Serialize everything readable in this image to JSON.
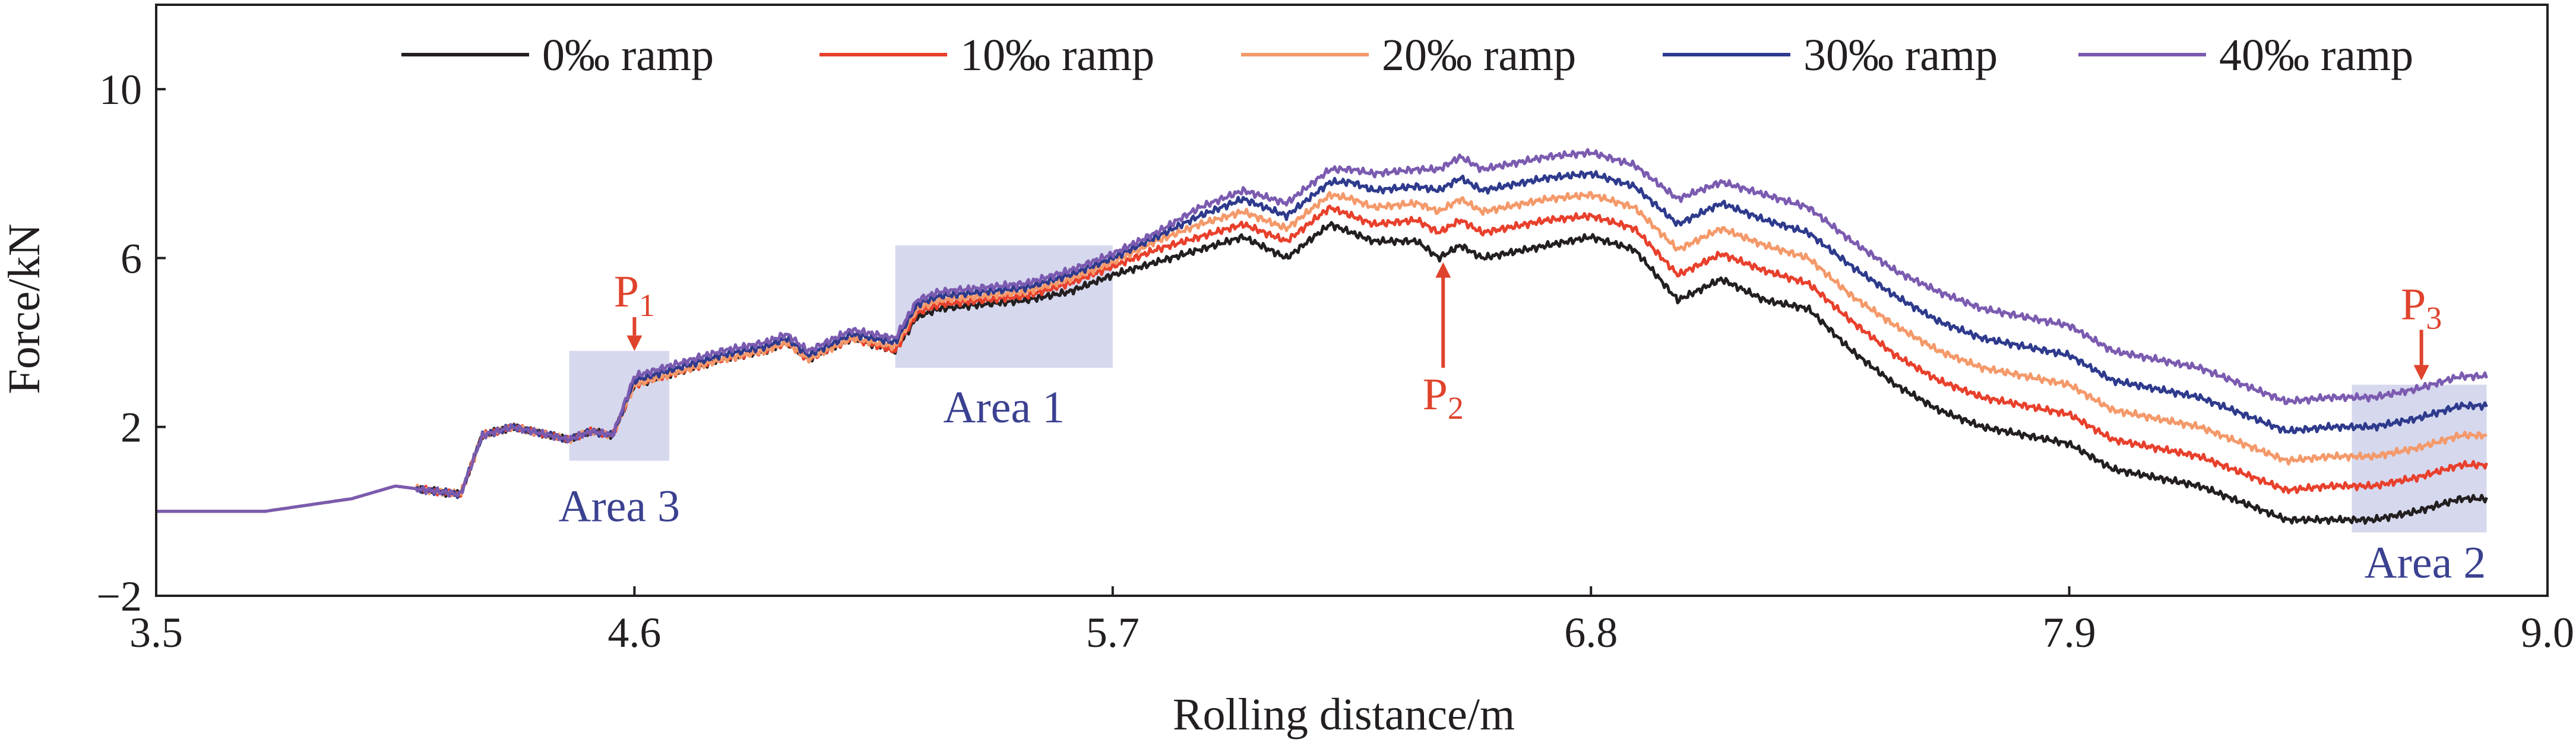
{
  "chart_data": {
    "type": "line",
    "title": "",
    "xlabel": "Rolling distance/m",
    "ylabel": "Force/kN",
    "xlim": [
      3.5,
      9.0
    ],
    "ylim": [
      -2,
      12
    ],
    "xticks": [
      "3.5",
      "4.6",
      "5.7",
      "6.8",
      "7.9",
      "9.0"
    ],
    "yticks": [
      "−2",
      "2",
      "6",
      "10"
    ],
    "legend_position": "top",
    "series": [
      {
        "name": "0‰ ramp",
        "color": "#231f20",
        "x": [
          3.5,
          3.75,
          3.95,
          4.05,
          4.2,
          4.25,
          4.32,
          4.45,
          4.5,
          4.55,
          4.6,
          4.7,
          4.8,
          4.9,
          4.95,
          5.0,
          5.1,
          5.2,
          5.25,
          5.3,
          5.5,
          5.6,
          5.7,
          5.8,
          5.9,
          6.0,
          6.1,
          6.2,
          6.25,
          6.3,
          6.4,
          6.45,
          6.5,
          6.55,
          6.6,
          6.7,
          6.8,
          6.9,
          7.0,
          7.1,
          7.2,
          7.3,
          7.4,
          7.5,
          7.6,
          7.7,
          7.8,
          7.9,
          8.0,
          8.1,
          8.2,
          8.3,
          8.4,
          8.5,
          8.6,
          8.7,
          8.8,
          8.86
        ],
        "y": [
          0,
          0,
          0.3,
          0.6,
          0.4,
          1.8,
          2.0,
          1.7,
          1.9,
          1.8,
          3.0,
          3.3,
          3.6,
          3.8,
          4.0,
          3.6,
          4.1,
          3.8,
          4.6,
          4.8,
          5.0,
          5.2,
          5.6,
          5.9,
          6.2,
          6.5,
          6.0,
          6.8,
          6.6,
          6.4,
          6.4,
          6.0,
          6.3,
          6.0,
          6.1,
          6.3,
          6.5,
          6.2,
          5.0,
          5.5,
          5.0,
          4.8,
          3.8,
          3.0,
          2.4,
          2.0,
          1.8,
          1.6,
          1.0,
          0.8,
          0.6,
          0.2,
          -0.2,
          -0.2,
          -0.2,
          0.0,
          0.3,
          0.3
        ]
      },
      {
        "name": "10‰ ramp",
        "color": "#e8402c",
        "x": [
          3.5,
          3.75,
          3.95,
          4.05,
          4.2,
          4.25,
          4.32,
          4.45,
          4.5,
          4.55,
          4.6,
          4.7,
          4.8,
          4.9,
          4.95,
          5.0,
          5.1,
          5.2,
          5.25,
          5.3,
          5.5,
          5.6,
          5.7,
          5.8,
          5.9,
          6.0,
          6.1,
          6.2,
          6.25,
          6.3,
          6.4,
          6.45,
          6.5,
          6.55,
          6.6,
          6.7,
          6.8,
          6.9,
          7.0,
          7.1,
          7.2,
          7.3,
          7.4,
          7.5,
          7.6,
          7.7,
          7.8,
          7.9,
          8.0,
          8.1,
          8.2,
          8.3,
          8.4,
          8.5,
          8.6,
          8.7,
          8.8,
          8.86
        ],
        "y": [
          0,
          0,
          0.3,
          0.6,
          0.4,
          1.8,
          2.0,
          1.7,
          1.9,
          1.8,
          3.0,
          3.3,
          3.6,
          3.8,
          4.0,
          3.6,
          4.1,
          3.8,
          4.7,
          4.9,
          5.1,
          5.4,
          5.8,
          6.2,
          6.5,
          6.8,
          6.4,
          7.2,
          7.0,
          6.8,
          6.9,
          6.6,
          6.9,
          6.6,
          6.7,
          6.9,
          7.0,
          6.7,
          5.6,
          6.1,
          5.7,
          5.4,
          4.5,
          3.7,
          3.1,
          2.7,
          2.5,
          2.3,
          1.7,
          1.5,
          1.3,
          0.9,
          0.5,
          0.6,
          0.6,
          0.8,
          1.1,
          1.1
        ]
      },
      {
        "name": "20‰ ramp",
        "color": "#f4996a",
        "x": [
          3.5,
          3.75,
          3.95,
          4.05,
          4.2,
          4.25,
          4.32,
          4.45,
          4.5,
          4.55,
          4.6,
          4.7,
          4.8,
          4.9,
          4.95,
          5.0,
          5.1,
          5.2,
          5.25,
          5.3,
          5.5,
          5.6,
          5.7,
          5.8,
          5.9,
          6.0,
          6.1,
          6.2,
          6.25,
          6.3,
          6.4,
          6.45,
          6.5,
          6.55,
          6.6,
          6.7,
          6.8,
          6.9,
          7.0,
          7.1,
          7.2,
          7.3,
          7.4,
          7.5,
          7.6,
          7.7,
          7.8,
          7.9,
          8.0,
          8.1,
          8.2,
          8.3,
          8.4,
          8.5,
          8.6,
          8.7,
          8.8,
          8.86
        ],
        "y": [
          0,
          0,
          0.3,
          0.6,
          0.4,
          1.8,
          2.0,
          1.7,
          1.9,
          1.8,
          3.0,
          3.3,
          3.6,
          3.8,
          4.0,
          3.6,
          4.1,
          3.9,
          4.8,
          5.0,
          5.2,
          5.5,
          5.9,
          6.4,
          6.8,
          7.1,
          6.7,
          7.5,
          7.4,
          7.2,
          7.3,
          7.1,
          7.4,
          7.1,
          7.2,
          7.4,
          7.5,
          7.2,
          6.2,
          6.7,
          6.3,
          6.0,
          5.1,
          4.4,
          3.8,
          3.4,
          3.2,
          3.0,
          2.4,
          2.2,
          2.0,
          1.6,
          1.2,
          1.3,
          1.3,
          1.5,
          1.8,
          1.8
        ]
      },
      {
        "name": "30‰ ramp",
        "color": "#2e3a8c",
        "x": [
          3.5,
          3.75,
          3.95,
          4.05,
          4.2,
          4.25,
          4.32,
          4.45,
          4.5,
          4.55,
          4.6,
          4.7,
          4.8,
          4.9,
          4.95,
          5.0,
          5.1,
          5.2,
          5.25,
          5.3,
          5.5,
          5.6,
          5.7,
          5.8,
          5.9,
          6.0,
          6.1,
          6.2,
          6.25,
          6.3,
          6.4,
          6.45,
          6.5,
          6.55,
          6.6,
          6.7,
          6.8,
          6.9,
          7.0,
          7.1,
          7.2,
          7.3,
          7.4,
          7.5,
          7.6,
          7.7,
          7.8,
          7.9,
          8.0,
          8.1,
          8.2,
          8.3,
          8.4,
          8.5,
          8.6,
          8.7,
          8.8,
          8.86
        ],
        "y": [
          0,
          0,
          0.3,
          0.6,
          0.4,
          1.8,
          2.0,
          1.7,
          1.9,
          1.8,
          3.1,
          3.4,
          3.7,
          3.9,
          4.1,
          3.7,
          4.2,
          4.0,
          4.9,
          5.1,
          5.3,
          5.6,
          6.0,
          6.5,
          7.0,
          7.4,
          7.0,
          7.8,
          7.8,
          7.6,
          7.7,
          7.6,
          7.9,
          7.6,
          7.7,
          7.9,
          8.0,
          7.7,
          6.8,
          7.3,
          6.9,
          6.6,
          5.8,
          5.1,
          4.5,
          4.1,
          3.9,
          3.7,
          3.1,
          2.9,
          2.7,
          2.3,
          1.9,
          2.0,
          2.0,
          2.2,
          2.5,
          2.5
        ]
      },
      {
        "name": "40‰ ramp",
        "color": "#7b5bb0",
        "x": [
          3.5,
          3.75,
          3.95,
          4.05,
          4.2,
          4.25,
          4.32,
          4.45,
          4.5,
          4.55,
          4.6,
          4.7,
          4.8,
          4.9,
          4.95,
          5.0,
          5.1,
          5.2,
          5.25,
          5.3,
          5.5,
          5.6,
          5.7,
          5.8,
          5.9,
          6.0,
          6.1,
          6.2,
          6.25,
          6.3,
          6.4,
          6.45,
          6.5,
          6.55,
          6.6,
          6.7,
          6.8,
          6.9,
          7.0,
          7.1,
          7.2,
          7.3,
          7.4,
          7.5,
          7.6,
          7.7,
          7.8,
          7.9,
          8.0,
          8.1,
          8.2,
          8.3,
          8.4,
          8.5,
          8.6,
          8.7,
          8.8,
          8.86
        ],
        "y": [
          0,
          0,
          0.3,
          0.6,
          0.4,
          1.8,
          2.0,
          1.7,
          1.9,
          1.8,
          3.2,
          3.5,
          3.8,
          4.0,
          4.2,
          3.8,
          4.3,
          4.1,
          5.0,
          5.2,
          5.4,
          5.7,
          6.1,
          6.6,
          7.2,
          7.6,
          7.3,
          8.1,
          8.1,
          8.0,
          8.1,
          8.1,
          8.4,
          8.1,
          8.2,
          8.4,
          8.5,
          8.2,
          7.4,
          7.8,
          7.5,
          7.2,
          6.4,
          5.7,
          5.2,
          4.8,
          4.6,
          4.4,
          3.8,
          3.6,
          3.4,
          3.0,
          2.6,
          2.7,
          2.7,
          2.9,
          3.2,
          3.2
        ]
      }
    ],
    "annotations": {
      "areas": [
        {
          "label": "Area 1",
          "x0": 5.2,
          "x1": 5.7,
          "y0": 3.4,
          "y1": 6.3
        },
        {
          "label": "Area 2",
          "x0": 8.55,
          "x1": 8.86,
          "y0": -0.5,
          "y1": 3.0
        },
        {
          "label": "Area 3",
          "x0": 4.45,
          "x1": 4.68,
          "y0": 1.2,
          "y1": 3.8
        }
      ],
      "points": [
        {
          "label": "P",
          "sub": "1",
          "x": 4.6,
          "y_tip": 3.8,
          "y_tail": 4.6
        },
        {
          "label": "P",
          "sub": "2",
          "x": 6.46,
          "y_tip": 5.9,
          "y_tail": 3.4
        },
        {
          "label": "P",
          "sub": "3",
          "x": 8.71,
          "y_tip": 3.1,
          "y_tail": 4.3
        }
      ],
      "color": "#e0432c"
    }
  }
}
